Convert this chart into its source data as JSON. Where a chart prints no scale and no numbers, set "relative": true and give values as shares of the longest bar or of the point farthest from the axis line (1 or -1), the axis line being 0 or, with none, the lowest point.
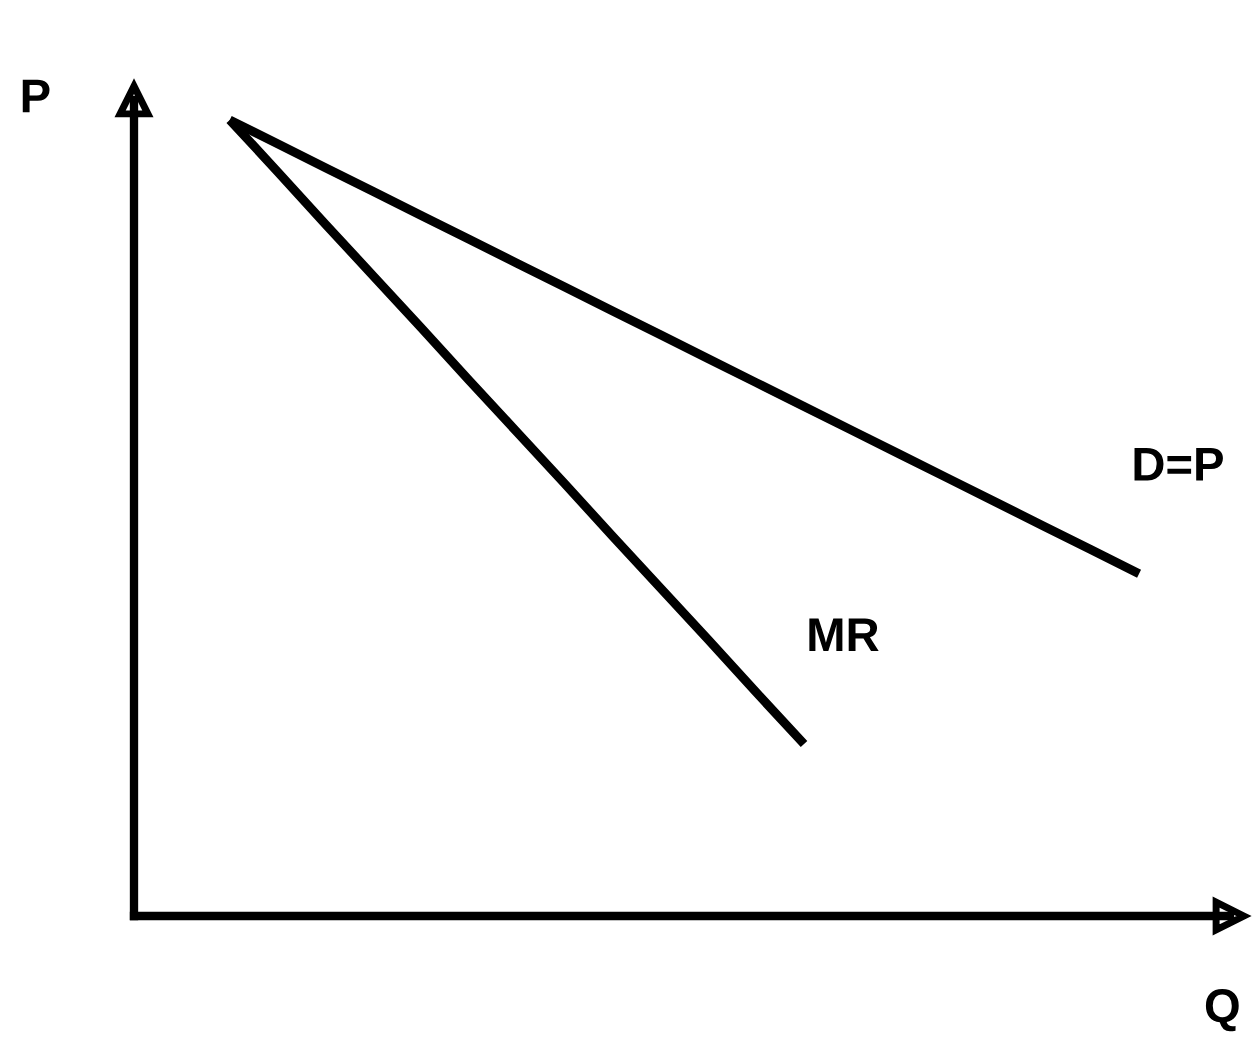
{
  "chart_data": {
    "type": "line",
    "relative": true,
    "xlabel": "Q",
    "ylabel": "P",
    "legend": false,
    "marker": "none",
    "line_style": "solid",
    "categories": [
      null,
      null,
      null,
      null,
      null,
      null,
      null,
      null,
      null,
      null,
      null,
      null,
      null,
      null,
      null,
      null,
      null,
      null,
      null,
      null,
      null,
      null
    ],
    "series": [
      {
        "name": "D=P",
        "color": "#000000",
        "values": [
          null,
          null,
          1,
          0.97,
          0.94,
          0.91,
          0.88,
          0.85,
          0.82,
          0.79,
          0.76,
          0.73,
          0.7,
          0.67,
          0.64,
          0.61,
          0.58,
          0.55,
          0.52,
          0.49,
          0.46,
          0.43
        ]
      },
      {
        "name": "MR",
        "color": "#000000",
        "values": [
          null,
          null,
          1,
          0.935,
          0.869,
          0.804,
          0.739,
          0.673,
          0.608,
          0.543,
          0.477,
          0.412,
          0.347,
          0.281,
          0.216,
          null,
          null,
          null,
          null,
          null,
          null,
          null
        ]
      }
    ]
  }
}
